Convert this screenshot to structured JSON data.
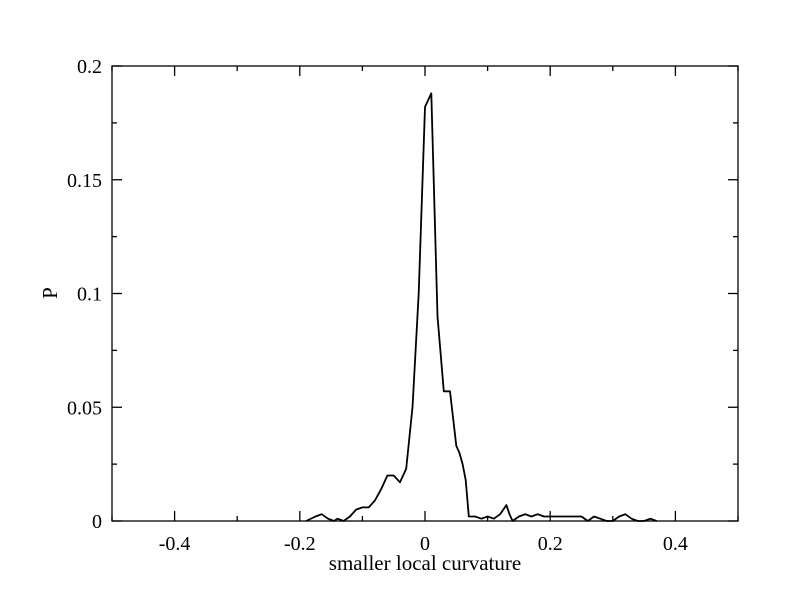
{
  "chart_data": {
    "type": "line",
    "title": "",
    "xlabel": "smaller local curvature",
    "ylabel": "P",
    "xlim": [
      -0.5,
      0.5
    ],
    "ylim": [
      0,
      0.2
    ],
    "grid": false,
    "x_ticks": [
      -0.4,
      -0.2,
      0,
      0.2,
      0.4
    ],
    "x_tick_labels": [
      "-0.4",
      "-0.2",
      "0",
      "0.2",
      "0.4"
    ],
    "y_ticks": [
      0,
      0.05,
      0.1,
      0.15,
      0.2
    ],
    "y_tick_labels": [
      "0",
      "0.05",
      "0.1",
      "0.15",
      "0.2"
    ],
    "series": [
      {
        "color": "#000000",
        "x": [
          -0.19,
          -0.175,
          -0.165,
          -0.155,
          -0.145,
          -0.14,
          -0.13,
          -0.12,
          -0.11,
          -0.1,
          -0.09,
          -0.08,
          -0.07,
          -0.06,
          -0.05,
          -0.04,
          -0.03,
          -0.02,
          -0.01,
          0,
          0.01,
          0.02,
          0.03,
          0.04,
          0.05,
          0.055,
          0.06,
          0.065,
          0.07,
          0.08,
          0.09,
          0.1,
          0.11,
          0.12,
          0.13,
          0.135,
          0.14,
          0.15,
          0.16,
          0.17,
          0.18,
          0.19,
          0.2,
          0.21,
          0.22,
          0.23,
          0.24,
          0.25,
          0.26,
          0.27,
          0.28,
          0.29,
          0.3,
          0.31,
          0.32,
          0.33,
          0.34,
          0.35,
          0.36,
          0.37
        ],
        "y": [
          0,
          0.002,
          0.003,
          0.001,
          0,
          0.001,
          0,
          0.002,
          0.005,
          0.006,
          0.006,
          0.009,
          0.014,
          0.02,
          0.02,
          0.017,
          0.023,
          0.05,
          0.1,
          0.182,
          0.188,
          0.09,
          0.057,
          0.057,
          0.033,
          0.03,
          0.025,
          0.018,
          0.002,
          0.002,
          0.001,
          0.002,
          0.001,
          0.003,
          0.007,
          0.003,
          0,
          0.002,
          0.003,
          0.002,
          0.003,
          0.002,
          0.002,
          0.002,
          0.002,
          0.002,
          0.002,
          0.002,
          0,
          0.002,
          0.001,
          0,
          0,
          0.002,
          0.003,
          0.001,
          0,
          0,
          0.001,
          0
        ]
      }
    ]
  }
}
